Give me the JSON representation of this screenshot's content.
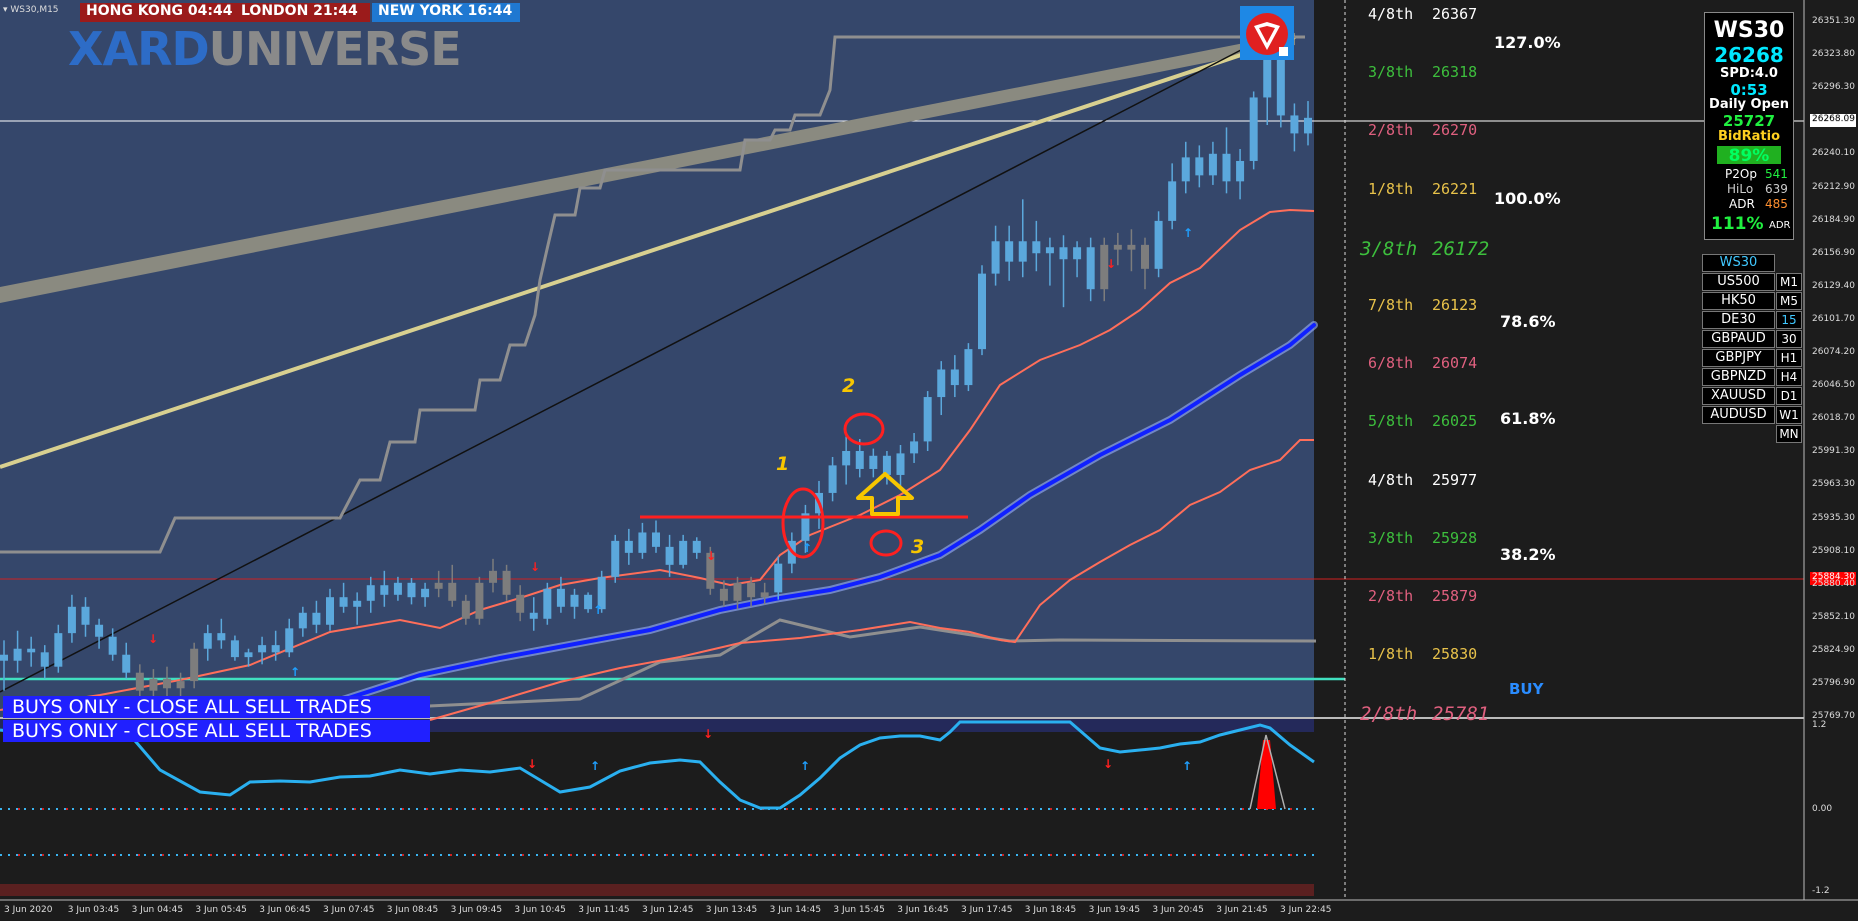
{
  "window": {
    "label": "WS30,M15"
  },
  "sessions": [
    {
      "label": "HONG KONG 04:44",
      "bg": "#9b1b1b"
    },
    {
      "label": "LONDON  21:44",
      "bg": "#9b1b1b"
    },
    {
      "label": "NEW YORK 16:44",
      "bg": "#1f78d1"
    }
  ],
  "brand": {
    "part1": "XARD",
    "part2": "UNIVERSE"
  },
  "murrey": [
    {
      "frac": "4/8th",
      "value": "26367",
      "color": "#ffffff",
      "italic": false
    },
    {
      "frac": "3/8th",
      "value": "26318",
      "color": "#3dbf3d",
      "italic": false
    },
    {
      "frac": "2/8th",
      "value": "26270",
      "color": "#e0607f",
      "italic": false
    },
    {
      "frac": "1/8th",
      "value": "26221",
      "color": "#e8c24a",
      "italic": false
    },
    {
      "frac": "3/8th",
      "value": "26172",
      "color": "#3dbf3d",
      "italic": true
    },
    {
      "frac": "7/8th",
      "value": "26123",
      "color": "#e8c24a",
      "italic": false
    },
    {
      "frac": "6/8th",
      "value": "26074",
      "color": "#e0607f",
      "italic": false
    },
    {
      "frac": "5/8th",
      "value": "26025",
      "color": "#3dbf3d",
      "italic": false
    },
    {
      "frac": "4/8th",
      "value": "25977",
      "color": "#ffffff",
      "italic": false
    },
    {
      "frac": "3/8th",
      "value": "25928",
      "color": "#3dbf3d",
      "italic": false
    },
    {
      "frac": "2/8th",
      "value": "25879",
      "color": "#e0607f",
      "italic": false
    },
    {
      "frac": "1/8th",
      "value": "25830",
      "color": "#e8c24a",
      "italic": false
    },
    {
      "frac": "2/8th",
      "value": "25781",
      "color": "#e0607f",
      "italic": true
    }
  ],
  "fib": [
    "127.0%",
    "100.0%",
    "78.6%",
    "61.8%",
    "38.2%"
  ],
  "buy_label": "BUY",
  "info": {
    "symbol": "WS30",
    "price": "26268",
    "spread": "SPD:4.0",
    "timer": "0:53",
    "daily_open_label": "Daily Open",
    "daily_open": "25727",
    "bidratio_label": "BidRatio",
    "bidratio": "89%",
    "p2op_label": "P2Op",
    "p2op": "541",
    "hilo_label": "HiLo",
    "hilo": "639",
    "adr_label": "ADR",
    "adr": "485",
    "adr_pct": "111%",
    "adr_pct_label": "ADR"
  },
  "symbols": [
    "WS30",
    "US500",
    "HK50",
    "DE30",
    "GBPAUD",
    "GBPJPY",
    "GBPNZD",
    "XAUUSD",
    "AUDUSD"
  ],
  "timeframes": [
    "M1",
    "M5",
    "15",
    "30",
    "H1",
    "H4",
    "D1",
    "W1",
    "MN"
  ],
  "banners": [
    "BUYS ONLY - CLOSE ALL SELL TRADES",
    "BUYS ONLY - CLOSE ALL SELL TRADES"
  ],
  "annotations": [
    "1",
    "2",
    "3"
  ],
  "price_axis": [
    "26351.30",
    "26323.80",
    "26296.30",
    "26268.80",
    "26240.10",
    "26212.90",
    "26184.90",
    "26156.90",
    "26129.40",
    "26101.70",
    "26074.20",
    "26046.50",
    "26018.70",
    "25991.30",
    "25963.30",
    "25935.30",
    "25908.10",
    "25880.40",
    "25852.10",
    "25824.90",
    "25796.90",
    "25769.70"
  ],
  "current_price_tag": "26268.09",
  "red_line_tag": "25884.30",
  "osc_axis": [
    "1.2",
    "0.00",
    "-1.2"
  ],
  "time_axis": [
    "3 Jun 2020",
    "3 Jun 03:45",
    "3 Jun 04:45",
    "3 Jun 05:45",
    "3 Jun 06:45",
    "3 Jun 07:45",
    "3 Jun 08:45",
    "3 Jun 09:45",
    "3 Jun 10:45",
    "3 Jun 11:45",
    "3 Jun 12:45",
    "3 Jun 13:45",
    "3 Jun 14:45",
    "3 Jun 15:45",
    "3 Jun 16:45",
    "3 Jun 17:45",
    "3 Jun 18:45",
    "3 Jun 19:45",
    "3 Jun 20:45",
    "3 Jun 21:45",
    "3 Jun 22:45"
  ],
  "chart_data": {
    "type": "candlestick",
    "symbol": "WS30",
    "timeframe": "M15",
    "candles": [
      [
        25820,
        25832,
        25790,
        25815
      ],
      [
        25815,
        25840,
        25805,
        25825
      ],
      [
        25825,
        25835,
        25810,
        25822
      ],
      [
        25822,
        25828,
        25800,
        25810
      ],
      [
        25810,
        25845,
        25805,
        25838
      ],
      [
        25838,
        25870,
        25830,
        25860
      ],
      [
        25860,
        25868,
        25835,
        25845
      ],
      [
        25845,
        25850,
        25825,
        25835
      ],
      [
        25835,
        25842,
        25815,
        25820
      ],
      [
        25820,
        25830,
        25800,
        25805
      ],
      [
        25805,
        25812,
        25785,
        25790
      ],
      [
        25790,
        25808,
        25785,
        25800
      ],
      [
        25800,
        25810,
        25780,
        25792
      ],
      [
        25792,
        25805,
        25785,
        25798
      ],
      [
        25798,
        25830,
        25792,
        25825
      ],
      [
        25825,
        25845,
        25815,
        25838
      ],
      [
        25838,
        25850,
        25825,
        25832
      ],
      [
        25832,
        25836,
        25815,
        25818
      ],
      [
        25818,
        25825,
        25810,
        25822
      ],
      [
        25822,
        25835,
        25812,
        25828
      ],
      [
        25828,
        25840,
        25815,
        25822
      ],
      [
        25822,
        25850,
        25818,
        25842
      ],
      [
        25842,
        25860,
        25835,
        25855
      ],
      [
        25855,
        25865,
        25838,
        25845
      ],
      [
        25845,
        25875,
        25840,
        25868
      ],
      [
        25868,
        25880,
        25855,
        25860
      ],
      [
        25860,
        25872,
        25845,
        25865
      ],
      [
        25865,
        25885,
        25855,
        25878
      ],
      [
        25878,
        25890,
        25860,
        25870
      ],
      [
        25870,
        25885,
        25865,
        25880
      ],
      [
        25880,
        25884,
        25862,
        25868
      ],
      [
        25868,
        25880,
        25860,
        25875
      ],
      [
        25875,
        25890,
        25868,
        25880
      ],
      [
        25880,
        25895,
        25860,
        25865
      ],
      [
        25865,
        25870,
        25845,
        25850
      ],
      [
        25850,
        25885,
        25845,
        25880
      ],
      [
        25880,
        25900,
        25872,
        25890
      ],
      [
        25890,
        25895,
        25865,
        25870
      ],
      [
        25870,
        25878,
        25848,
        25855
      ],
      [
        25855,
        25868,
        25840,
        25850
      ],
      [
        25850,
        25880,
        25845,
        25875
      ],
      [
        25875,
        25885,
        25855,
        25860
      ],
      [
        25860,
        25875,
        25850,
        25870
      ],
      [
        25870,
        25872,
        25855,
        25858
      ],
      [
        25858,
        25890,
        25855,
        25885
      ],
      [
        25885,
        25920,
        25880,
        25915
      ],
      [
        25915,
        25925,
        25895,
        25905
      ],
      [
        25905,
        25930,
        25900,
        25922
      ],
      [
        25922,
        25932,
        25905,
        25910
      ],
      [
        25910,
        25920,
        25885,
        25895
      ],
      [
        25895,
        25920,
        25892,
        25915
      ],
      [
        25915,
        25918,
        25900,
        25905
      ],
      [
        25905,
        25910,
        25870,
        25875
      ],
      [
        25875,
        25882,
        25860,
        25865
      ],
      [
        25865,
        25885,
        25858,
        25880
      ],
      [
        25880,
        25885,
        25860,
        25868
      ],
      [
        25868,
        25880,
        25862,
        25872
      ],
      [
        25872,
        25902,
        25866,
        25896
      ],
      [
        25896,
        25922,
        25888,
        25915
      ],
      [
        25915,
        25945,
        25905,
        25938
      ],
      [
        25938,
        25965,
        25925,
        25955
      ],
      [
        25955,
        25985,
        25948,
        25978
      ],
      [
        25978,
        26002,
        25962,
        25990
      ],
      [
        25990,
        26000,
        25968,
        25975
      ],
      [
        25975,
        25992,
        25968,
        25986
      ],
      [
        25986,
        25990,
        25962,
        25970
      ],
      [
        25970,
        25995,
        25958,
        25988
      ],
      [
        25988,
        26005,
        25980,
        25998
      ],
      [
        25998,
        26040,
        25990,
        26035
      ],
      [
        26035,
        26065,
        26020,
        26058
      ],
      [
        26058,
        26070,
        26035,
        26045
      ],
      [
        26045,
        26080,
        26040,
        26075
      ],
      [
        26075,
        26145,
        26070,
        26138
      ],
      [
        26138,
        26178,
        26128,
        26165
      ],
      [
        26165,
        26178,
        26132,
        26148
      ],
      [
        26148,
        26200,
        26135,
        26165
      ],
      [
        26165,
        26182,
        26140,
        26155
      ],
      [
        26155,
        26168,
        26128,
        26160
      ],
      [
        26160,
        26170,
        26110,
        26150
      ],
      [
        26150,
        26165,
        26135,
        26160
      ],
      [
        26160,
        26168,
        26115,
        26125
      ],
      [
        26125,
        26168,
        26115,
        26162
      ],
      [
        26162,
        26172,
        26145,
        26158
      ],
      [
        26158,
        26175,
        26140,
        26162
      ],
      [
        26162,
        26168,
        26125,
        26142
      ],
      [
        26142,
        26190,
        26135,
        26182
      ],
      [
        26182,
        26230,
        26175,
        26215
      ],
      [
        26215,
        26248,
        26205,
        26235
      ],
      [
        26235,
        26245,
        26210,
        26220
      ],
      [
        26220,
        26248,
        26212,
        26238
      ],
      [
        26238,
        26260,
        26205,
        26215
      ],
      [
        26215,
        26242,
        26200,
        26232
      ],
      [
        26232,
        26290,
        26225,
        26285
      ],
      [
        26285,
        26338,
        26262,
        26328
      ],
      [
        26328,
        26345,
        26260,
        26270
      ],
      [
        26270,
        26280,
        26240,
        26255
      ],
      [
        26255,
        26282,
        26245,
        26268
      ]
    ],
    "xlabel": "",
    "ylabel": "",
    "ylim": [
      25769.7,
      26351.3
    ]
  }
}
